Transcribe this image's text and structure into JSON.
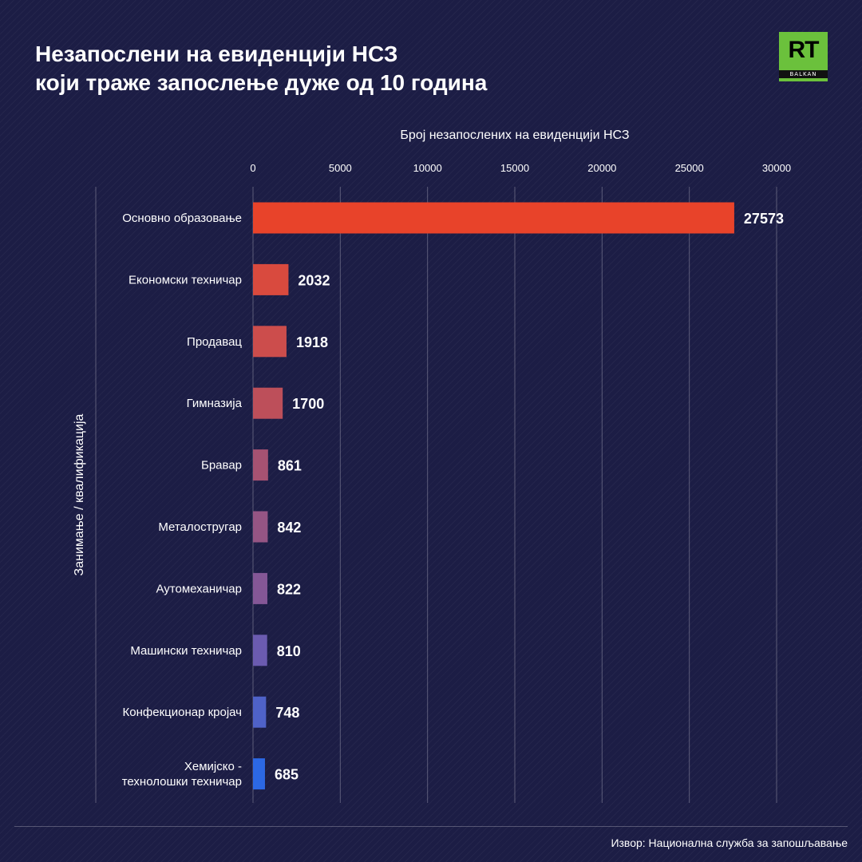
{
  "header": {
    "title_line1": "Незапослени на евиденцији НСЗ",
    "title_line2": "који траже запослење дуже од 10 година"
  },
  "logo": {
    "brand": "RT",
    "sub": "BALKAN"
  },
  "source": "Извор: Национална служба за запошљавање",
  "chart_data": {
    "type": "bar",
    "orientation": "horizontal",
    "xlabel": "Број незапослених на евиденцији НСЗ",
    "ylabel": "Занимање / квалификација",
    "xlim": [
      0,
      30000
    ],
    "xticks": [
      0,
      5000,
      10000,
      15000,
      20000,
      25000,
      30000
    ],
    "grid": true,
    "categories": [
      [
        "Основно образовање"
      ],
      [
        "Економски техничар"
      ],
      [
        "Продавац"
      ],
      [
        "Гимназија"
      ],
      [
        "Бравар"
      ],
      [
        "Металостругар"
      ],
      [
        "Аутомеханичар"
      ],
      [
        "Машински техничар"
      ],
      [
        "Конфекционар кројач"
      ],
      [
        "Хемијско -",
        "технолошки техничар"
      ]
    ],
    "values": [
      27573,
      2032,
      1918,
      1700,
      861,
      842,
      822,
      810,
      748,
      685
    ],
    "colors": [
      "#e8432a",
      "#d94a3e",
      "#cc4d4c",
      "#bd4f5a",
      "#a65272",
      "#955584",
      "#845796",
      "#6b5bb0",
      "#4f62c8",
      "#2c68e4"
    ]
  }
}
